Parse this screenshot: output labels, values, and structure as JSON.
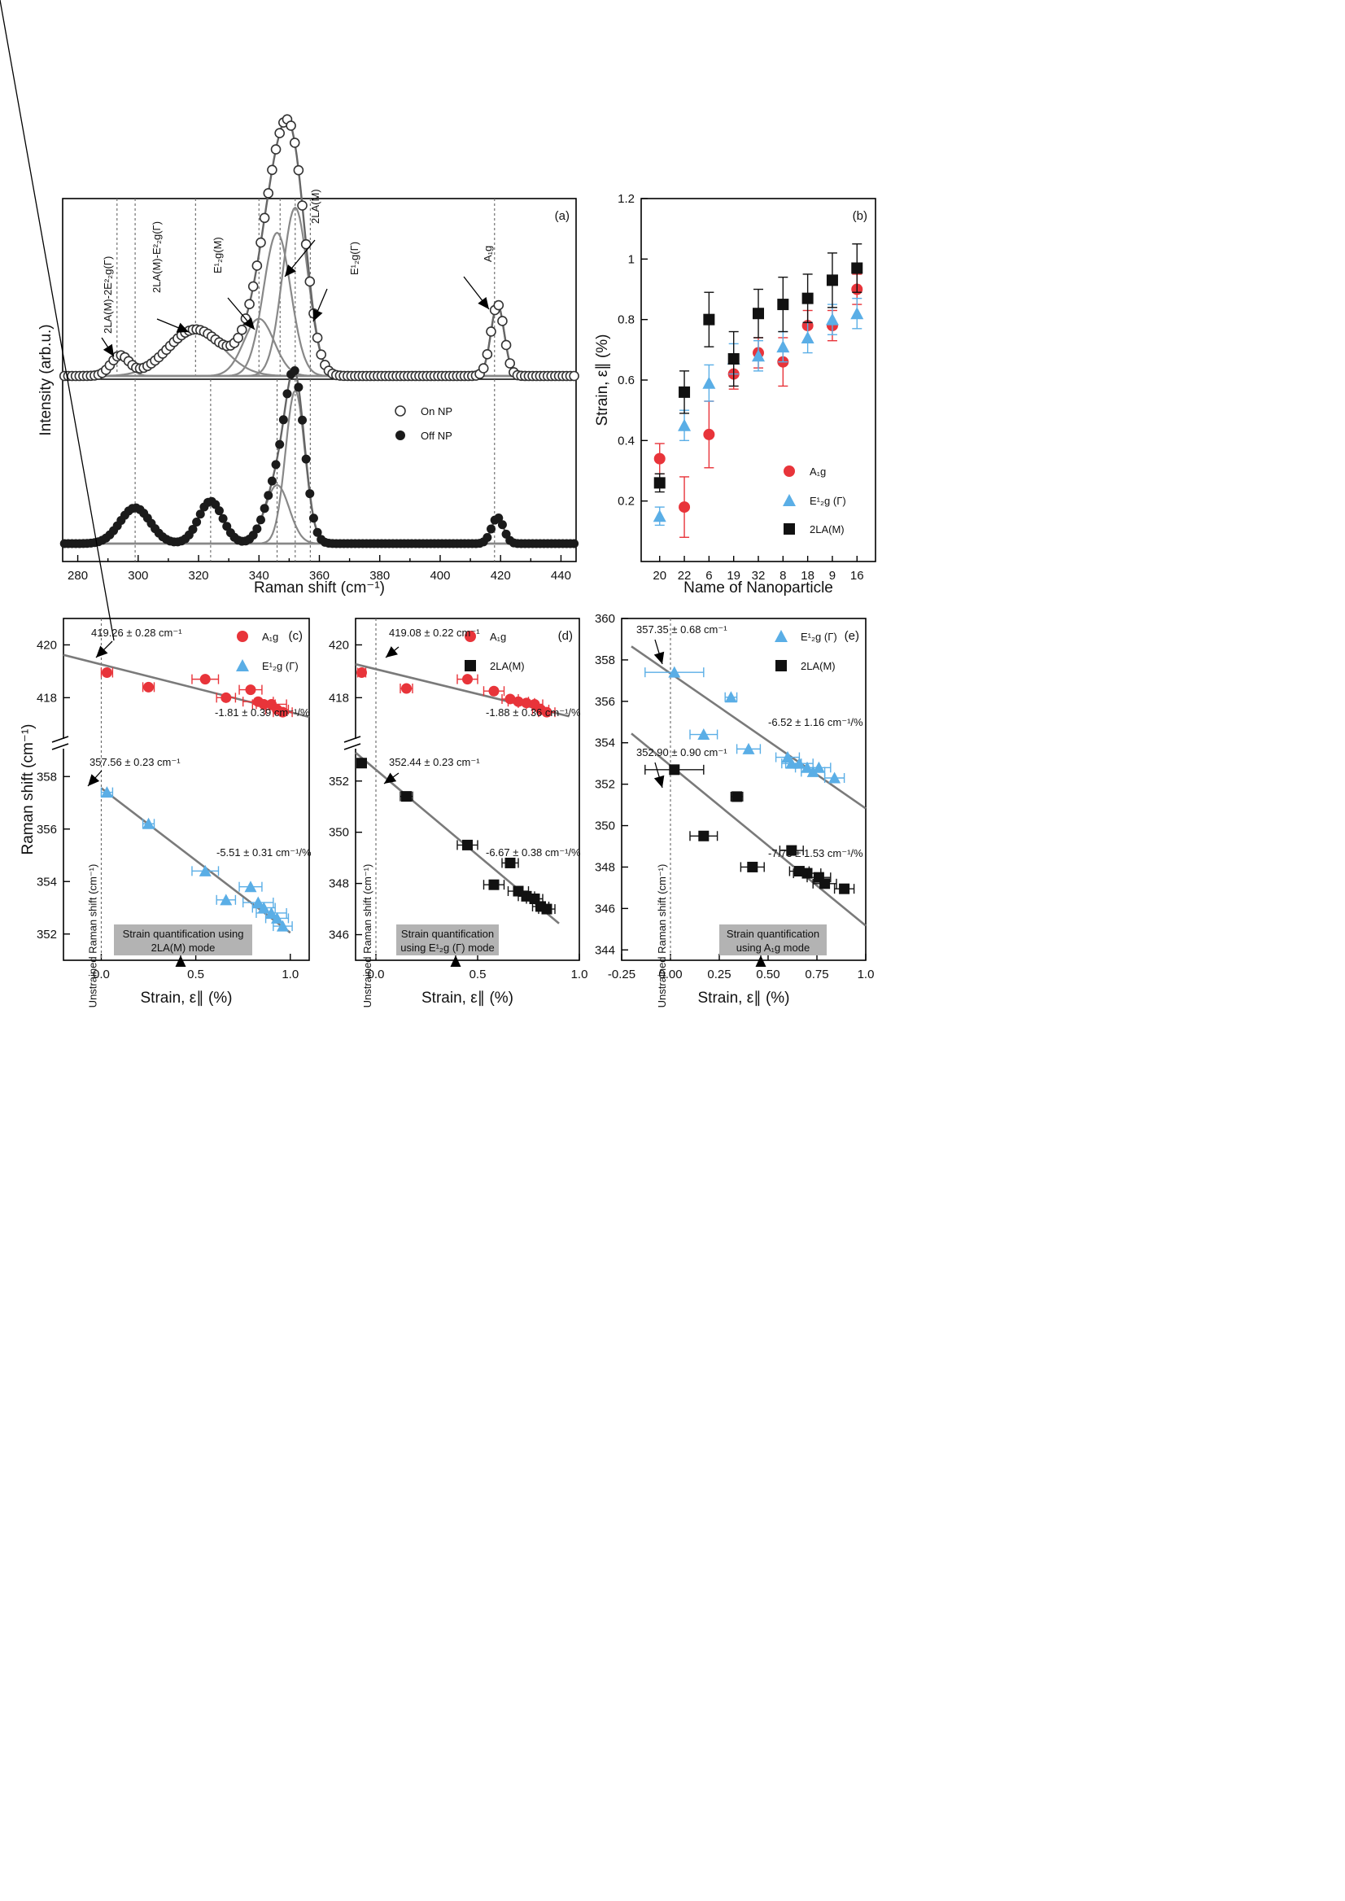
{
  "chart_data": [
    {
      "id": "a",
      "type": "line",
      "panel_label": "(a)",
      "xlabel": "Raman shift (cm⁻¹)",
      "ylabel": "Intensity (arb.u.)",
      "xlim": [
        275,
        445
      ],
      "xticks": [
        280,
        300,
        320,
        340,
        360,
        380,
        400,
        420,
        440
      ],
      "legend": [
        "On NP",
        "Off NP"
      ],
      "reference_lines_upper": [
        293,
        299,
        319,
        340,
        347,
        352,
        357,
        418
      ],
      "reference_lines_lower": [
        299,
        324,
        346,
        352,
        357,
        418
      ],
      "peak_labels": [
        "2LA(M)-2E²₂g(Γ)",
        "2LA(M)-E²₂g(Γ)",
        "E¹₂g(M)",
        "2LA(M)",
        "E¹₂g(Γ)",
        "A₁g"
      ],
      "series": [
        {
          "name": "On NP",
          "peaks": [
            {
              "center": 294,
              "height": 0.055,
              "width": 3
            },
            {
              "center": 319,
              "height": 0.13,
              "width": 9
            },
            {
              "center": 340,
              "height": 0.16,
              "width": 5
            },
            {
              "center": 346,
              "height": 0.4,
              "width": 4.5
            },
            {
              "center": 352,
              "height": 0.47,
              "width": 4.2
            },
            {
              "center": 419,
              "height": 0.2,
              "width": 2.2
            }
          ]
        },
        {
          "name": "Off NP",
          "peaks": [
            {
              "center": 299,
              "height": 0.11,
              "width": 5
            },
            {
              "center": 324,
              "height": 0.13,
              "width": 4
            },
            {
              "center": 346,
              "height": 0.18,
              "width": 4
            },
            {
              "center": 352,
              "height": 0.47,
              "width": 3.2
            },
            {
              "center": 419,
              "height": 0.08,
              "width": 2
            }
          ]
        }
      ]
    },
    {
      "id": "b",
      "type": "scatter",
      "panel_label": "(b)",
      "xlabel": "Name of Nanoparticle",
      "ylabel": "Strain, ε∥ (%)",
      "ylim": [
        0.0,
        1.2
      ],
      "yticks": [
        0.2,
        0.4,
        0.6,
        0.8,
        1.0,
        1.2
      ],
      "categories": [
        "20",
        "22",
        "6",
        "19",
        "32",
        "8",
        "18",
        "9",
        "16"
      ],
      "series": [
        {
          "name": "A₁g",
          "color": "#e8343a",
          "marker": "circle",
          "values": [
            0.34,
            0.18,
            0.42,
            0.62,
            0.69,
            0.66,
            0.78,
            0.78,
            0.9
          ],
          "err": [
            0.05,
            0.1,
            0.11,
            0.05,
            0.05,
            0.08,
            0.05,
            0.05,
            0.05
          ]
        },
        {
          "name": "E¹₂g (Γ)",
          "color": "#5aaee6",
          "marker": "triangle",
          "values": [
            0.15,
            0.45,
            0.59,
            0.67,
            0.68,
            0.71,
            0.74,
            0.8,
            0.82
          ],
          "err": [
            0.03,
            0.05,
            0.06,
            0.05,
            0.05,
            0.05,
            0.05,
            0.05,
            0.05
          ]
        },
        {
          "name": "2LA(M)",
          "color": "#111111",
          "marker": "square",
          "values": [
            0.26,
            0.56,
            0.8,
            0.67,
            0.82,
            0.85,
            0.87,
            0.93,
            0.97
          ],
          "err": [
            0.03,
            0.07,
            0.09,
            0.09,
            0.08,
            0.09,
            0.08,
            0.09,
            0.08
          ]
        }
      ]
    },
    {
      "id": "c",
      "type": "scatter",
      "panel_label": "(c)",
      "xlabel": "Strain, ε∥ (%)",
      "ylabel": "Raman shift (cm⁻¹)",
      "vline_label": "Unstrained Raman shift  (cm⁻¹)",
      "xlim": [
        -0.2,
        1.1
      ],
      "xticks": [
        0.0,
        0.5,
        1.0
      ],
      "ylim_upper": [
        416.5,
        421
      ],
      "yticks_upper": [
        418,
        420
      ],
      "ylim_lower": [
        351,
        359
      ],
      "yticks_lower": [
        352,
        354,
        356,
        358
      ],
      "series": [
        {
          "name": "A₁g",
          "color": "#e8343a",
          "marker": "circle",
          "x": [
            0.03,
            0.25,
            0.55,
            0.66,
            0.79,
            0.83,
            0.86,
            0.9,
            0.93,
            0.96
          ],
          "y": [
            418.95,
            418.4,
            418.7,
            418.0,
            418.3,
            417.85,
            417.75,
            417.75,
            417.55,
            417.45
          ],
          "xerr": [
            0.03,
            0.03,
            0.07,
            0.05,
            0.06,
            0.08,
            0.06,
            0.08,
            0.06,
            0.05
          ]
        },
        {
          "name": "E¹₂g (Γ)",
          "color": "#5aaee6",
          "marker": "triangle",
          "x": [
            0.03,
            0.25,
            0.55,
            0.66,
            0.79,
            0.83,
            0.86,
            0.9,
            0.93,
            0.96
          ],
          "y": [
            357.4,
            356.2,
            354.4,
            353.3,
            353.8,
            353.2,
            353.0,
            352.8,
            352.6,
            352.3
          ],
          "xerr": [
            0.03,
            0.03,
            0.07,
            0.05,
            0.06,
            0.08,
            0.06,
            0.08,
            0.06,
            0.05
          ]
        }
      ],
      "fits": [
        {
          "intercept": 419.26,
          "slope": -1.81,
          "x": [
            -0.2,
            1.1
          ]
        },
        {
          "intercept": 357.56,
          "slope": -5.51,
          "x": [
            0.0,
            1.0
          ]
        }
      ],
      "annotations": {
        "top_intercept": "419.26 ± 0.28 cm⁻¹",
        "top_slope": "-1.81 ± 0.39 cm⁻¹/%",
        "bottom_intercept": "357.56 ± 0.23 cm⁻¹",
        "bottom_slope": "-5.51 ± 0.31 cm⁻¹/%",
        "box": [
          "Strain quantification using",
          "2LA(M) mode"
        ]
      }
    },
    {
      "id": "d",
      "type": "scatter",
      "panel_label": "(d)",
      "xlabel": "Strain, ε∥ (%)",
      "ylabel": "",
      "vline_label": "Unstrained Raman shift  (cm⁻¹)",
      "xlim": [
        -0.1,
        1.0
      ],
      "xticks": [
        0.0,
        0.5,
        1.0
      ],
      "ylim_upper": [
        416.5,
        421
      ],
      "yticks_upper": [
        418,
        420
      ],
      "ylim_lower": [
        345,
        353.2
      ],
      "yticks_lower": [
        346,
        348,
        350,
        352
      ],
      "series": [
        {
          "name": "A₁g",
          "color": "#e8343a",
          "marker": "circle",
          "x": [
            -0.07,
            0.15,
            0.45,
            0.58,
            0.66,
            0.7,
            0.74,
            0.78,
            0.81,
            0.84
          ],
          "y": [
            418.95,
            418.35,
            418.7,
            418.25,
            417.95,
            417.85,
            417.8,
            417.75,
            417.55,
            417.45
          ],
          "xerr": [
            0.02,
            0.03,
            0.05,
            0.05,
            0.04,
            0.05,
            0.04,
            0.04,
            0.04,
            0.04
          ]
        },
        {
          "name": "2LA(M)",
          "color": "#111111",
          "marker": "square",
          "x": [
            -0.07,
            0.15,
            0.45,
            0.58,
            0.66,
            0.7,
            0.74,
            0.78,
            0.81,
            0.84
          ],
          "y": [
            352.7,
            351.4,
            349.5,
            347.95,
            348.8,
            347.7,
            347.5,
            347.4,
            347.1,
            347.0
          ],
          "xerr": [
            0.02,
            0.03,
            0.05,
            0.05,
            0.04,
            0.05,
            0.04,
            0.04,
            0.04,
            0.04
          ]
        }
      ],
      "fits": [
        {
          "intercept": 419.08,
          "slope": -1.88,
          "x": [
            -0.1,
            0.95
          ]
        },
        {
          "intercept": 352.44,
          "slope": -6.67,
          "x": [
            -0.1,
            0.9
          ]
        }
      ],
      "annotations": {
        "top_intercept": "419.08 ± 0.22 cm⁻¹",
        "top_slope": "-1.88 ± 0.36 cm⁻¹/%",
        "bottom_intercept": "352.44 ± 0.23 cm⁻¹",
        "bottom_slope": "-6.67 ± 0.38 cm⁻¹/%",
        "box": [
          "Strain quantification",
          "using E¹₂g (Γ) mode"
        ]
      }
    },
    {
      "id": "e",
      "type": "scatter",
      "panel_label": "(e)",
      "xlabel": "Strain, ε∥ (%)",
      "ylabel": "",
      "vline_label": "Unstrained Raman shift  (cm⁻¹)",
      "xlim": [
        -0.25,
        1.0
      ],
      "xticks": [
        -0.25,
        0.0,
        0.25,
        0.5,
        0.75,
        1.0
      ],
      "xtick_labels": [
        "-0.25",
        "0.00",
        "0.25",
        "0.50",
        "0.75",
        "1.0"
      ],
      "ylim": [
        343.5,
        360
      ],
      "yticks": [
        344,
        346,
        348,
        350,
        352,
        354,
        356,
        358,
        360
      ],
      "series": [
        {
          "name": "E¹₂g (Γ)",
          "color": "#5aaee6",
          "marker": "triangle",
          "x": [
            0.02,
            0.17,
            0.31,
            0.4,
            0.6,
            0.62,
            0.66,
            0.7,
            0.73,
            0.76,
            0.84
          ],
          "y": [
            357.4,
            354.4,
            356.2,
            353.7,
            353.3,
            353.0,
            353.0,
            352.8,
            352.6,
            352.8,
            352.3
          ],
          "xerr": [
            0.15,
            0.07,
            0.03,
            0.06,
            0.06,
            0.05,
            0.07,
            0.06,
            0.06,
            0.06,
            0.05
          ]
        },
        {
          "name": "2LA(M)",
          "color": "#111111",
          "marker": "square",
          "x": [
            0.02,
            0.17,
            0.34,
            0.42,
            0.62,
            0.66,
            0.7,
            0.76,
            0.79,
            0.89
          ],
          "y": [
            352.7,
            349.5,
            351.4,
            348.0,
            348.8,
            347.8,
            347.7,
            347.5,
            347.2,
            346.95
          ],
          "xerr": [
            0.15,
            0.07,
            0.03,
            0.06,
            0.06,
            0.05,
            0.07,
            0.06,
            0.06,
            0.05
          ]
        }
      ],
      "fits": [
        {
          "intercept": 357.35,
          "slope": -6.52,
          "x": [
            -0.2,
            1.0
          ]
        },
        {
          "intercept": 352.9,
          "slope": -7.73,
          "x": [
            -0.2,
            1.0
          ]
        }
      ],
      "annotations": {
        "top_intercept": "357.35 ± 0.68 cm⁻¹",
        "top_slope": "-6.52 ± 1.16 cm⁻¹/%",
        "bottom_intercept": "352.90 ± 0.90 cm⁻¹",
        "bottom_slope": "-7.73 ± 1.53 cm⁻¹/%",
        "box": [
          "Strain quantification",
          "using A₁g mode"
        ]
      }
    }
  ]
}
